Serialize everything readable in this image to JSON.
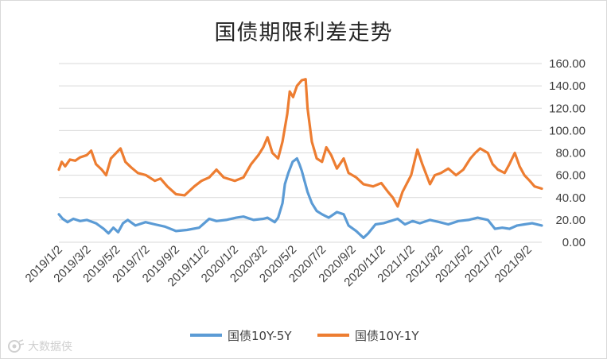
{
  "chart_data": {
    "type": "line",
    "title": "国债期限利差走势",
    "xlabel": "",
    "ylabel": "",
    "ylim": [
      0,
      160
    ],
    "y_ticks": [
      "0.00",
      "20.00",
      "40.00",
      "60.00",
      "80.00",
      "100.00",
      "120.00",
      "140.00",
      "160.00"
    ],
    "x_tick_labels": [
      "2019/1/2",
      "2019/3/2",
      "2019/5/2",
      "2019/7/2",
      "2019/9/2",
      "2019/11/2",
      "2020/1/2",
      "2020/3/2",
      "2020/5/2",
      "2020/7/2",
      "2020/9/2",
      "2020/11/2",
      "2021/1/2",
      "2021/3/2",
      "2021/5/2",
      "2021/7/2",
      "2021/9/2"
    ],
    "x_range": [
      "2019/1/2",
      "2021/9/30"
    ],
    "grid": true,
    "legend_position": "bottom",
    "series": [
      {
        "name": "国债10Y-5Y",
        "color": "#5b9bd5",
        "points": [
          [
            "2019/1/2",
            25
          ],
          [
            "2019/1/10",
            21
          ],
          [
            "2019/1/20",
            18
          ],
          [
            "2019/2/1",
            21
          ],
          [
            "2019/2/15",
            19
          ],
          [
            "2019/3/1",
            20
          ],
          [
            "2019/3/20",
            17
          ],
          [
            "2019/4/5",
            12
          ],
          [
            "2019/4/15",
            8
          ],
          [
            "2019/4/25",
            13
          ],
          [
            "2019/5/5",
            9
          ],
          [
            "2019/5/15",
            17
          ],
          [
            "2019/5/25",
            20
          ],
          [
            "2019/6/10",
            15
          ],
          [
            "2019/7/1",
            18
          ],
          [
            "2019/7/20",
            16
          ],
          [
            "2019/8/10",
            14
          ],
          [
            "2019/9/2",
            10
          ],
          [
            "2019/9/25",
            11
          ],
          [
            "2019/10/20",
            13
          ],
          [
            "2019/11/10",
            21
          ],
          [
            "2019/11/25",
            19
          ],
          [
            "2019/12/15",
            20
          ],
          [
            "2020/1/5",
            22
          ],
          [
            "2020/1/20",
            23
          ],
          [
            "2020/2/10",
            20
          ],
          [
            "2020/3/1",
            21
          ],
          [
            "2020/3/10",
            22
          ],
          [
            "2020/3/25",
            18
          ],
          [
            "2020/4/1",
            22
          ],
          [
            "2020/4/10",
            35
          ],
          [
            "2020/4/15",
            52
          ],
          [
            "2020/4/22",
            62
          ],
          [
            "2020/5/1",
            72
          ],
          [
            "2020/5/10",
            75
          ],
          [
            "2020/5/15",
            70
          ],
          [
            "2020/5/20",
            64
          ],
          [
            "2020/6/1",
            45
          ],
          [
            "2020/6/10",
            35
          ],
          [
            "2020/6/20",
            28
          ],
          [
            "2020/7/1",
            25
          ],
          [
            "2020/7/15",
            22
          ],
          [
            "2020/8/1",
            27
          ],
          [
            "2020/8/15",
            25
          ],
          [
            "2020/8/25",
            15
          ],
          [
            "2020/9/10",
            10
          ],
          [
            "2020/9/25",
            4
          ],
          [
            "2020/10/5",
            8
          ],
          [
            "2020/10/20",
            16
          ],
          [
            "2020/11/5",
            17
          ],
          [
            "2020/11/20",
            19
          ],
          [
            "2020/12/5",
            21
          ],
          [
            "2020/12/20",
            16
          ],
          [
            "2021/1/5",
            19
          ],
          [
            "2021/1/20",
            17
          ],
          [
            "2021/2/10",
            20
          ],
          [
            "2021/3/2",
            18
          ],
          [
            "2021/3/20",
            16
          ],
          [
            "2021/4/10",
            19
          ],
          [
            "2021/5/1",
            20
          ],
          [
            "2021/5/20",
            22
          ],
          [
            "2021/6/10",
            20
          ],
          [
            "2021/6/25",
            12
          ],
          [
            "2021/7/10",
            13
          ],
          [
            "2021/7/25",
            12
          ],
          [
            "2021/8/10",
            15
          ],
          [
            "2021/8/25",
            16
          ],
          [
            "2021/9/10",
            17
          ],
          [
            "2021/9/30",
            15
          ]
        ]
      },
      {
        "name": "国债10Y-1Y",
        "color": "#ed7d31",
        "points": [
          [
            "2019/1/2",
            65
          ],
          [
            "2019/1/8",
            72
          ],
          [
            "2019/1/15",
            68
          ],
          [
            "2019/1/25",
            74
          ],
          [
            "2019/2/5",
            73
          ],
          [
            "2019/2/15",
            76
          ],
          [
            "2019/3/1",
            78
          ],
          [
            "2019/3/10",
            82
          ],
          [
            "2019/3/20",
            70
          ],
          [
            "2019/4/1",
            65
          ],
          [
            "2019/4/10",
            60
          ],
          [
            "2019/4/20",
            75
          ],
          [
            "2019/5/1",
            80
          ],
          [
            "2019/5/10",
            84
          ],
          [
            "2019/5/20",
            72
          ],
          [
            "2019/6/1",
            67
          ],
          [
            "2019/6/15",
            62
          ],
          [
            "2019/7/2",
            60
          ],
          [
            "2019/7/20",
            55
          ],
          [
            "2019/8/1",
            57
          ],
          [
            "2019/8/15",
            50
          ],
          [
            "2019/9/2",
            43
          ],
          [
            "2019/9/20",
            42
          ],
          [
            "2019/10/10",
            50
          ],
          [
            "2019/10/25",
            55
          ],
          [
            "2019/11/10",
            58
          ],
          [
            "2019/11/25",
            65
          ],
          [
            "2019/12/10",
            58
          ],
          [
            "2020/1/2",
            55
          ],
          [
            "2020/1/20",
            58
          ],
          [
            "2020/2/5",
            70
          ],
          [
            "2020/2/20",
            78
          ],
          [
            "2020/3/1",
            85
          ],
          [
            "2020/3/10",
            94
          ],
          [
            "2020/3/20",
            80
          ],
          [
            "2020/4/1",
            75
          ],
          [
            "2020/4/10",
            90
          ],
          [
            "2020/4/20",
            115
          ],
          [
            "2020/4/25",
            135
          ],
          [
            "2020/5/2",
            130
          ],
          [
            "2020/5/10",
            140
          ],
          [
            "2020/5/20",
            145
          ],
          [
            "2020/5/28",
            146
          ],
          [
            "2020/6/1",
            120
          ],
          [
            "2020/6/10",
            90
          ],
          [
            "2020/6/20",
            75
          ],
          [
            "2020/7/1",
            72
          ],
          [
            "2020/7/10",
            85
          ],
          [
            "2020/7/20",
            78
          ],
          [
            "2020/8/1",
            66
          ],
          [
            "2020/8/15",
            75
          ],
          [
            "2020/8/25",
            62
          ],
          [
            "2020/9/10",
            58
          ],
          [
            "2020/9/25",
            52
          ],
          [
            "2020/10/15",
            50
          ],
          [
            "2020/11/1",
            53
          ],
          [
            "2020/11/15",
            45
          ],
          [
            "2020/11/25",
            40
          ],
          [
            "2020/12/5",
            32
          ],
          [
            "2020/12/15",
            45
          ],
          [
            "2021/1/2",
            60
          ],
          [
            "2021/1/15",
            83
          ],
          [
            "2021/1/25",
            70
          ],
          [
            "2021/2/10",
            52
          ],
          [
            "2021/2/20",
            60
          ],
          [
            "2021/3/5",
            62
          ],
          [
            "2021/3/20",
            66
          ],
          [
            "2021/4/5",
            60
          ],
          [
            "2021/4/20",
            65
          ],
          [
            "2021/5/5",
            75
          ],
          [
            "2021/5/15",
            80
          ],
          [
            "2021/5/25",
            84
          ],
          [
            "2021/6/10",
            80
          ],
          [
            "2021/6/20",
            70
          ],
          [
            "2021/7/1",
            65
          ],
          [
            "2021/7/15",
            62
          ],
          [
            "2021/7/25",
            70
          ],
          [
            "2021/8/5",
            80
          ],
          [
            "2021/8/15",
            68
          ],
          [
            "2021/8/25",
            60
          ],
          [
            "2021/9/5",
            55
          ],
          [
            "2021/9/15",
            50
          ],
          [
            "2021/9/30",
            48
          ]
        ]
      }
    ]
  },
  "watermark": {
    "text": "大数据侠"
  }
}
